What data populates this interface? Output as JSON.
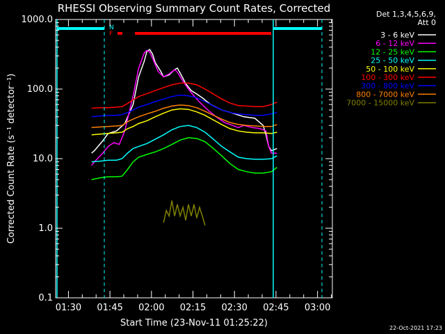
{
  "chart_data": {
    "type": "line",
    "title": "RHESSI Observing Summary Count Rates, Corrected",
    "xlabel": "Start Time (23-Nov-11 01:25:22)",
    "ylabel": "Corrected Count Rate (s⁻¹ detector⁻¹)",
    "x_unit": "minutes after 01:25:22",
    "xlim": [
      0,
      100
    ],
    "ylim": [
      0.1,
      1000
    ],
    "y_scale": "log",
    "x_ticks": [
      {
        "label": "01:30",
        "x": 4.63
      },
      {
        "label": "01:45",
        "x": 19.63
      },
      {
        "label": "02:00",
        "x": 34.63
      },
      {
        "label": "02:15",
        "x": 49.63
      },
      {
        "label": "02:30",
        "x": 64.63
      },
      {
        "label": "02:45",
        "x": 79.63
      },
      {
        "label": "03:00",
        "x": 94.63
      }
    ],
    "y_ticks": [
      {
        "label": "0.1",
        "y": 0.1
      },
      {
        "label": "1.0",
        "y": 1
      },
      {
        "label": "10.0",
        "y": 10
      },
      {
        "label": "100.0",
        "y": 100
      },
      {
        "label": "1000.0",
        "y": 1000
      }
    ],
    "legend_header": [
      "Det 1,3,4,5,6,9,",
      "Att 0"
    ],
    "legend_position": "right",
    "grid": false,
    "series": [
      {
        "name": "3 - 6 keV",
        "color": "#ffffff",
        "points": [
          [
            13,
            12
          ],
          [
            14,
            13
          ],
          [
            17,
            18
          ],
          [
            19,
            23
          ],
          [
            22,
            25
          ],
          [
            25,
            32
          ],
          [
            28,
            60
          ],
          [
            30,
            150
          ],
          [
            32,
            250
          ],
          [
            33,
            350
          ],
          [
            34,
            370
          ],
          [
            35,
            320
          ],
          [
            36,
            240
          ],
          [
            38,
            180
          ],
          [
            39,
            150
          ],
          [
            41,
            160
          ],
          [
            43,
            190
          ],
          [
            44,
            200
          ],
          [
            45,
            170
          ],
          [
            47,
            120
          ],
          [
            49,
            95
          ],
          [
            51,
            85
          ],
          [
            53,
            75
          ],
          [
            56,
            60
          ],
          [
            60,
            50
          ],
          [
            64,
            45
          ],
          [
            68,
            40
          ],
          [
            72,
            38
          ],
          [
            75,
            30
          ],
          [
            76,
            22
          ],
          [
            77,
            15
          ],
          [
            78,
            13
          ],
          [
            80,
            14
          ]
        ]
      },
      {
        "name": "6 - 12 keV",
        "color": "#ff00ff",
        "points": [
          [
            13,
            8
          ],
          [
            14,
            9
          ],
          [
            17,
            12
          ],
          [
            19,
            15
          ],
          [
            21,
            17
          ],
          [
            23,
            16
          ],
          [
            25,
            25
          ],
          [
            28,
            80
          ],
          [
            30,
            200
          ],
          [
            32,
            330
          ],
          [
            33,
            360
          ],
          [
            34,
            340
          ],
          [
            35,
            280
          ],
          [
            37,
            180
          ],
          [
            39,
            150
          ],
          [
            41,
            165
          ],
          [
            43,
            190
          ],
          [
            44,
            175
          ],
          [
            46,
            130
          ],
          [
            48,
            100
          ],
          [
            50,
            80
          ],
          [
            52,
            65
          ],
          [
            55,
            50
          ],
          [
            58,
            40
          ],
          [
            61,
            33
          ],
          [
            64,
            30
          ],
          [
            66,
            28
          ],
          [
            68,
            30
          ],
          [
            71,
            28
          ],
          [
            74,
            27
          ],
          [
            76,
            25
          ],
          [
            77,
            15
          ],
          [
            78,
            12
          ],
          [
            80,
            12
          ]
        ]
      },
      {
        "name": "12 - 25 keV",
        "color": "#00ff00",
        "points": [
          [
            13,
            5
          ],
          [
            16,
            5.3
          ],
          [
            19,
            5.5
          ],
          [
            22,
            5.5
          ],
          [
            24,
            5.6
          ],
          [
            26,
            7
          ],
          [
            28,
            9
          ],
          [
            30,
            10.5
          ],
          [
            33,
            11.5
          ],
          [
            36,
            12.5
          ],
          [
            39,
            14
          ],
          [
            42,
            16
          ],
          [
            45,
            18.5
          ],
          [
            48,
            20
          ],
          [
            51,
            19.5
          ],
          [
            54,
            17.5
          ],
          [
            57,
            14
          ],
          [
            60,
            11
          ],
          [
            63,
            8.5
          ],
          [
            66,
            7
          ],
          [
            69,
            6.5
          ],
          [
            72,
            6.2
          ],
          [
            75,
            6.2
          ],
          [
            78,
            6.5
          ],
          [
            80,
            7.5
          ]
        ]
      },
      {
        "name": "25 - 50 keV",
        "color": "#00ffff",
        "points": [
          [
            13,
            9
          ],
          [
            16,
            9.2
          ],
          [
            19,
            9.5
          ],
          [
            22,
            9.5
          ],
          [
            24,
            10
          ],
          [
            26,
            12
          ],
          [
            28,
            14
          ],
          [
            30,
            15
          ],
          [
            33,
            16.5
          ],
          [
            36,
            19
          ],
          [
            39,
            22
          ],
          [
            42,
            26
          ],
          [
            45,
            29
          ],
          [
            48,
            30
          ],
          [
            51,
            28
          ],
          [
            54,
            24
          ],
          [
            57,
            19
          ],
          [
            60,
            15
          ],
          [
            63,
            12.5
          ],
          [
            66,
            10.5
          ],
          [
            69,
            10
          ],
          [
            72,
            9.8
          ],
          [
            75,
            9.8
          ],
          [
            78,
            10
          ],
          [
            80,
            11
          ]
        ]
      },
      {
        "name": "50 - 100 keV",
        "color": "#ffff00",
        "points": [
          [
            13,
            22
          ],
          [
            16,
            22.5
          ],
          [
            19,
            23
          ],
          [
            22,
            23.5
          ],
          [
            24,
            24
          ],
          [
            26,
            27
          ],
          [
            28,
            29
          ],
          [
            30,
            32
          ],
          [
            33,
            35
          ],
          [
            36,
            40
          ],
          [
            39,
            45
          ],
          [
            42,
            50
          ],
          [
            45,
            52
          ],
          [
            48,
            51
          ],
          [
            51,
            47
          ],
          [
            54,
            42
          ],
          [
            57,
            36
          ],
          [
            60,
            31
          ],
          [
            63,
            27
          ],
          [
            66,
            25
          ],
          [
            69,
            24
          ],
          [
            72,
            23.5
          ],
          [
            75,
            23.5
          ],
          [
            78,
            23
          ],
          [
            80,
            24
          ]
        ]
      },
      {
        "name": "100 - 300 keV",
        "color": "#ff0000",
        "points": [
          [
            13,
            53
          ],
          [
            16,
            54
          ],
          [
            19,
            54
          ],
          [
            22,
            55
          ],
          [
            24,
            56
          ],
          [
            26,
            62
          ],
          [
            28,
            70
          ],
          [
            30,
            78
          ],
          [
            33,
            86
          ],
          [
            36,
            95
          ],
          [
            39,
            105
          ],
          [
            42,
            115
          ],
          [
            45,
            122
          ],
          [
            48,
            122
          ],
          [
            51,
            115
          ],
          [
            54,
            100
          ],
          [
            57,
            85
          ],
          [
            60,
            72
          ],
          [
            63,
            63
          ],
          [
            66,
            58
          ],
          [
            69,
            57
          ],
          [
            72,
            56
          ],
          [
            75,
            56
          ],
          [
            78,
            60
          ],
          [
            80,
            65
          ]
        ]
      },
      {
        "name": "300 - 800 keV",
        "color": "#0000ff",
        "points": [
          [
            13,
            40
          ],
          [
            16,
            41
          ],
          [
            19,
            42
          ],
          [
            22,
            42
          ],
          [
            24,
            43
          ],
          [
            26,
            46
          ],
          [
            28,
            50
          ],
          [
            30,
            55
          ],
          [
            33,
            60
          ],
          [
            36,
            66
          ],
          [
            39,
            72
          ],
          [
            42,
            78
          ],
          [
            45,
            82
          ],
          [
            48,
            80
          ],
          [
            51,
            75
          ],
          [
            54,
            66
          ],
          [
            57,
            57
          ],
          [
            60,
            50
          ],
          [
            63,
            46
          ],
          [
            66,
            44
          ],
          [
            69,
            43
          ],
          [
            72,
            42
          ],
          [
            75,
            42
          ],
          [
            78,
            44
          ],
          [
            80,
            46
          ]
        ]
      },
      {
        "name": "800 - 7000 keV",
        "color": "#ff8000",
        "points": [
          [
            13,
            28
          ],
          [
            16,
            28.5
          ],
          [
            19,
            29
          ],
          [
            22,
            29.5
          ],
          [
            24,
            30
          ],
          [
            26,
            34
          ],
          [
            28,
            37
          ],
          [
            30,
            40
          ],
          [
            33,
            44
          ],
          [
            36,
            48
          ],
          [
            39,
            53
          ],
          [
            42,
            57
          ],
          [
            45,
            59
          ],
          [
            48,
            58
          ],
          [
            51,
            54
          ],
          [
            54,
            48
          ],
          [
            57,
            42
          ],
          [
            60,
            37
          ],
          [
            63,
            33
          ],
          [
            66,
            31
          ],
          [
            69,
            30
          ],
          [
            72,
            29.5
          ],
          [
            75,
            29
          ],
          [
            78,
            29
          ],
          [
            80,
            31
          ]
        ]
      },
      {
        "name": "7000 - 15000 keV",
        "color": "#808000",
        "points": [
          [
            39,
            1.2
          ],
          [
            40,
            1.8
          ],
          [
            41,
            1.5
          ],
          [
            42,
            2.5
          ],
          [
            43,
            1.5
          ],
          [
            44,
            2.2
          ],
          [
            45,
            1.5
          ],
          [
            46,
            2
          ],
          [
            47,
            1.3
          ],
          [
            48,
            2.2
          ],
          [
            49,
            1.5
          ],
          [
            50,
            2.2
          ],
          [
            51,
            1.4
          ],
          [
            52,
            2
          ],
          [
            53,
            1.5
          ],
          [
            54,
            1.1
          ]
        ]
      }
    ],
    "annotations": {
      "flag_labels": [
        "N",
        "F"
      ],
      "footer_date": "22-Oct-2021 17:23"
    }
  }
}
